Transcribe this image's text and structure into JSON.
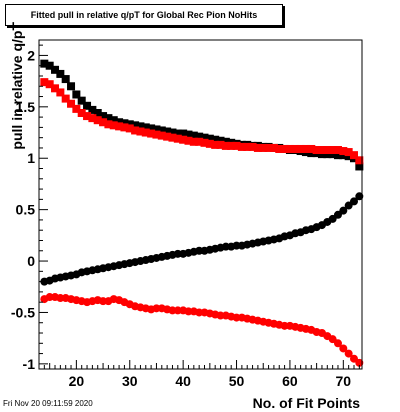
{
  "chart_data": {
    "type": "scatter",
    "title": "Fitted pull in relative q/pT for Global Rec Pion NoHits",
    "xlabel": "No. of Fit Points",
    "ylabel": "pull in relative q/pT",
    "xlim": [
      13,
      73.5
    ],
    "ylim": [
      -1.05,
      2.15
    ],
    "xticks": [
      20,
      30,
      40,
      50,
      60,
      70
    ],
    "yticks": [
      -1,
      -0.5,
      0,
      0.5,
      1,
      1.5,
      2
    ],
    "grid": false,
    "legend": "none",
    "series": [
      {
        "color": "#000000",
        "marker": "square",
        "x": [
          14,
          15,
          16,
          17,
          18,
          19,
          20,
          21,
          22,
          23,
          24,
          25,
          26,
          27,
          28,
          29,
          30,
          31,
          32,
          33,
          34,
          35,
          36,
          37,
          38,
          39,
          40,
          41,
          42,
          43,
          44,
          45,
          46,
          47,
          48,
          49,
          50,
          51,
          52,
          53,
          54,
          55,
          56,
          57,
          58,
          59,
          60,
          61,
          62,
          63,
          64,
          65,
          66,
          67,
          68,
          69,
          70,
          71,
          72,
          73
        ],
        "y": [
          1.92,
          1.9,
          1.86,
          1.82,
          1.77,
          1.7,
          1.62,
          1.56,
          1.51,
          1.47,
          1.44,
          1.41,
          1.39,
          1.37,
          1.35,
          1.34,
          1.33,
          1.32,
          1.31,
          1.3,
          1.29,
          1.28,
          1.27,
          1.26,
          1.25,
          1.24,
          1.24,
          1.23,
          1.22,
          1.21,
          1.2,
          1.19,
          1.18,
          1.17,
          1.16,
          1.15,
          1.14,
          1.13,
          1.13,
          1.12,
          1.12,
          1.11,
          1.11,
          1.1,
          1.1,
          1.09,
          1.08,
          1.08,
          1.07,
          1.06,
          1.05,
          1.05,
          1.04,
          1.04,
          1.04,
          1.03,
          1.03,
          1.02,
          1.0,
          0.92
        ]
      },
      {
        "color": "#ff0000",
        "marker": "square",
        "x": [
          14,
          15,
          16,
          17,
          18,
          19,
          20,
          21,
          22,
          23,
          24,
          25,
          26,
          27,
          28,
          29,
          30,
          31,
          32,
          33,
          34,
          35,
          36,
          37,
          38,
          39,
          40,
          41,
          42,
          43,
          44,
          45,
          46,
          47,
          48,
          49,
          50,
          51,
          52,
          53,
          54,
          55,
          56,
          57,
          58,
          59,
          60,
          61,
          62,
          63,
          64,
          65,
          66,
          67,
          68,
          69,
          70,
          71,
          72,
          73
        ],
        "y": [
          1.74,
          1.72,
          1.68,
          1.64,
          1.58,
          1.53,
          1.48,
          1.44,
          1.41,
          1.39,
          1.37,
          1.35,
          1.33,
          1.32,
          1.31,
          1.3,
          1.29,
          1.27,
          1.26,
          1.25,
          1.24,
          1.23,
          1.22,
          1.21,
          1.2,
          1.19,
          1.18,
          1.17,
          1.16,
          1.16,
          1.15,
          1.14,
          1.13,
          1.13,
          1.12,
          1.12,
          1.12,
          1.11,
          1.11,
          1.11,
          1.1,
          1.1,
          1.1,
          1.1,
          1.09,
          1.09,
          1.09,
          1.09,
          1.09,
          1.09,
          1.09,
          1.08,
          1.08,
          1.08,
          1.08,
          1.08,
          1.07,
          1.06,
          1.03,
          0.98
        ]
      },
      {
        "color": "#000000",
        "marker": "circle",
        "x": [
          14,
          15,
          16,
          17,
          18,
          19,
          20,
          21,
          22,
          23,
          24,
          25,
          26,
          27,
          28,
          29,
          30,
          31,
          32,
          33,
          34,
          35,
          36,
          37,
          38,
          39,
          40,
          41,
          42,
          43,
          44,
          45,
          46,
          47,
          48,
          49,
          50,
          51,
          52,
          53,
          54,
          55,
          56,
          57,
          58,
          59,
          60,
          61,
          62,
          63,
          64,
          65,
          66,
          67,
          68,
          69,
          70,
          71,
          72,
          73
        ],
        "y": [
          -0.2,
          -0.19,
          -0.17,
          -0.16,
          -0.15,
          -0.14,
          -0.13,
          -0.11,
          -0.1,
          -0.09,
          -0.08,
          -0.07,
          -0.06,
          -0.05,
          -0.04,
          -0.03,
          -0.02,
          -0.01,
          0.0,
          0.01,
          0.02,
          0.03,
          0.04,
          0.05,
          0.06,
          0.07,
          0.07,
          0.08,
          0.09,
          0.1,
          0.1,
          0.11,
          0.12,
          0.13,
          0.14,
          0.14,
          0.15,
          0.15,
          0.16,
          0.17,
          0.18,
          0.19,
          0.2,
          0.21,
          0.22,
          0.24,
          0.25,
          0.27,
          0.28,
          0.3,
          0.31,
          0.33,
          0.35,
          0.38,
          0.41,
          0.45,
          0.49,
          0.54,
          0.58,
          0.63
        ]
      },
      {
        "color": "#ff0000",
        "marker": "circle",
        "x": [
          14,
          15,
          16,
          17,
          18,
          19,
          20,
          21,
          22,
          23,
          24,
          25,
          26,
          27,
          28,
          29,
          30,
          31,
          32,
          33,
          34,
          35,
          36,
          37,
          38,
          39,
          40,
          41,
          42,
          43,
          44,
          45,
          46,
          47,
          48,
          49,
          50,
          51,
          52,
          53,
          54,
          55,
          56,
          57,
          58,
          59,
          60,
          61,
          62,
          63,
          64,
          65,
          66,
          67,
          68,
          69,
          70,
          71,
          72,
          73
        ],
        "y": [
          -0.37,
          -0.35,
          -0.35,
          -0.36,
          -0.36,
          -0.37,
          -0.38,
          -0.39,
          -0.4,
          -0.39,
          -0.38,
          -0.39,
          -0.39,
          -0.37,
          -0.38,
          -0.4,
          -0.42,
          -0.44,
          -0.45,
          -0.46,
          -0.47,
          -0.46,
          -0.46,
          -0.47,
          -0.48,
          -0.48,
          -0.48,
          -0.49,
          -0.49,
          -0.5,
          -0.5,
          -0.51,
          -0.52,
          -0.53,
          -0.53,
          -0.54,
          -0.55,
          -0.55,
          -0.56,
          -0.57,
          -0.58,
          -0.59,
          -0.6,
          -0.61,
          -0.62,
          -0.63,
          -0.63,
          -0.64,
          -0.65,
          -0.66,
          -0.67,
          -0.69,
          -0.7,
          -0.73,
          -0.76,
          -0.8,
          -0.85,
          -0.9,
          -0.95,
          -0.99
        ]
      }
    ]
  },
  "timestamp": "Fri Nov 20 09:11:59 2020"
}
